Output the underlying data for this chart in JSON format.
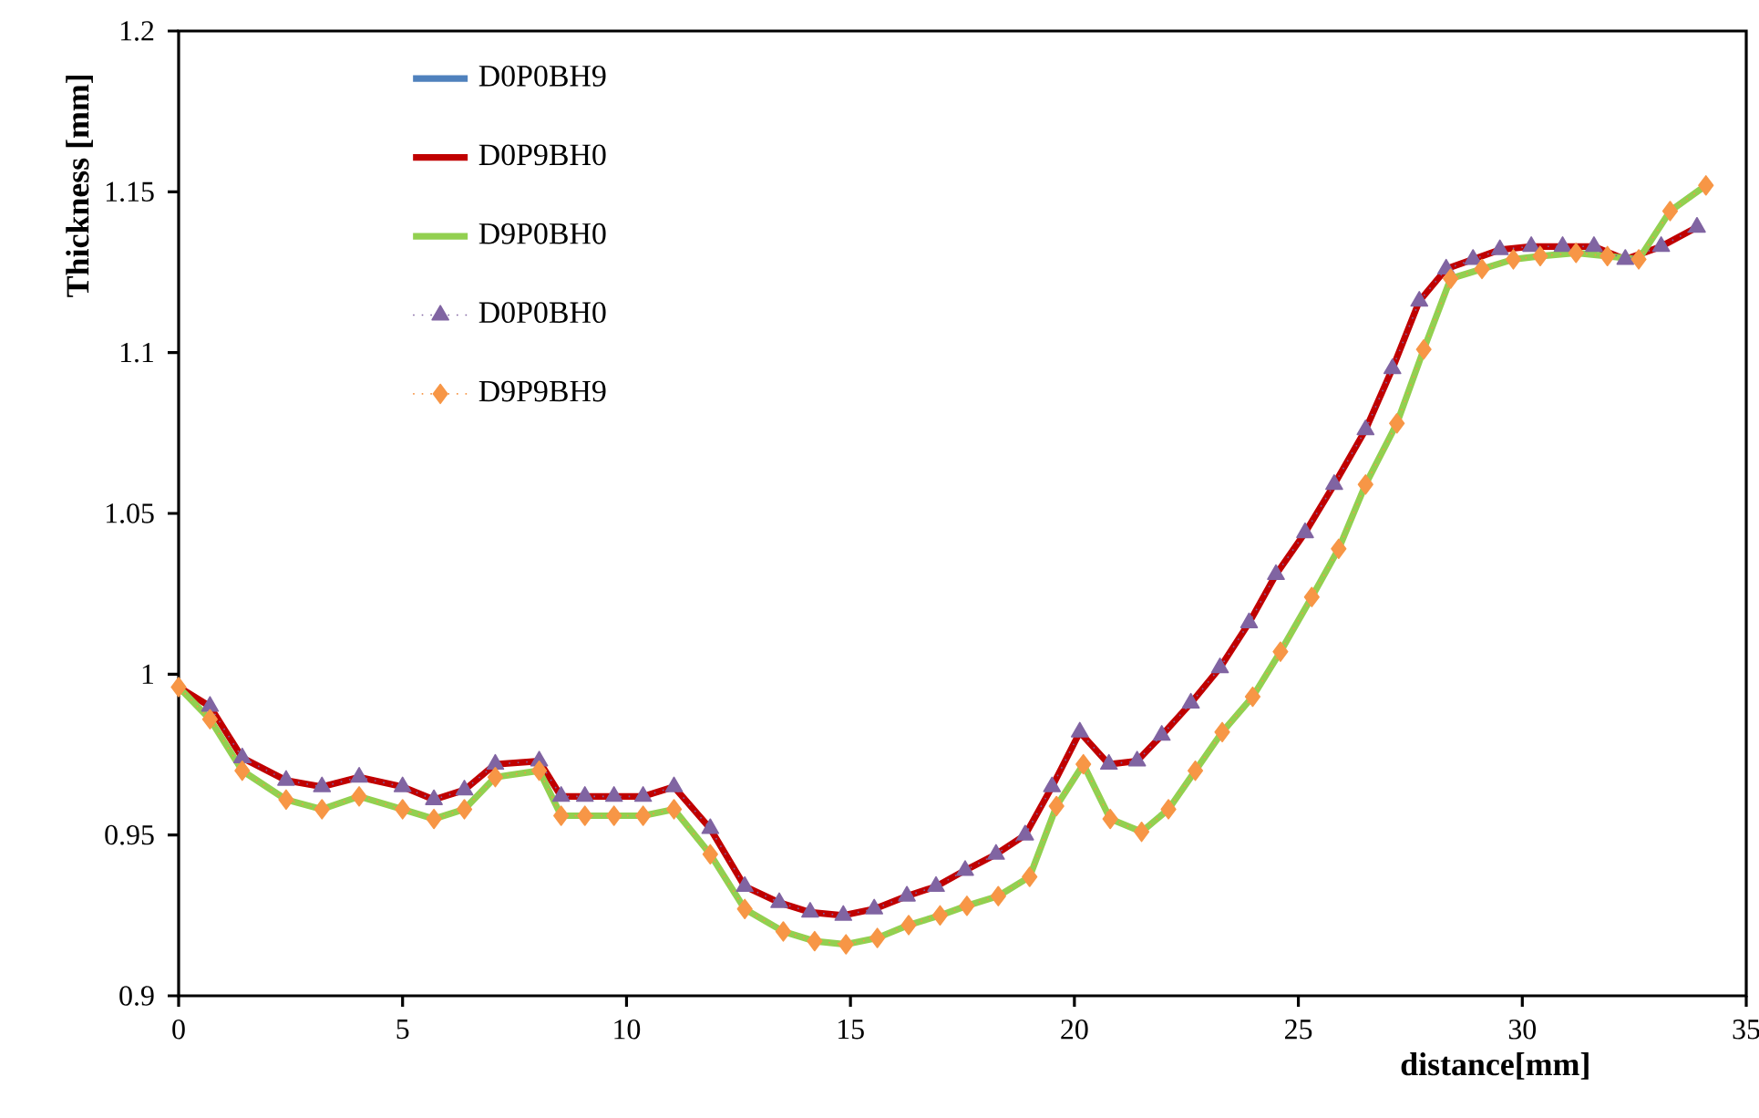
{
  "chart_data": {
    "type": "line",
    "xlabel": "distance[mm]",
    "ylabel": "Thickness [mm]",
    "xlim": [
      0,
      35
    ],
    "xticks": [
      0,
      5,
      10,
      15,
      20,
      25,
      30,
      35
    ],
    "ylim": [
      0.9,
      1.2
    ],
    "yticks": [
      0.9,
      0.95,
      1,
      1.05,
      1.1,
      1.15,
      1.2
    ],
    "grid": false,
    "legend": "top left",
    "x": [
      0,
      0.7,
      1.42,
      2.4,
      3.2,
      4.03,
      5.0,
      5.7,
      6.38,
      7.07,
      8.05,
      8.54,
      9.07,
      9.72,
      10.37,
      11.06,
      11.87,
      12.64,
      13.41,
      14.1,
      14.84,
      15.53,
      16.26,
      16.91,
      17.56,
      18.25,
      18.9,
      19.5,
      20.12,
      20.77,
      21.4,
      21.95,
      22.6,
      23.25,
      23.9,
      24.5,
      25.15,
      25.8,
      26.5,
      27.1,
      27.7,
      28.3,
      28.9,
      29.5,
      30.2,
      30.9,
      31.6,
      32.3,
      33.1,
      33.9
    ],
    "series": [
      {
        "name": "D0P0BH9",
        "color": "#4f81bd",
        "marker": "none",
        "line_style": "solid",
        "values": [
          null,
          null,
          null,
          null,
          null,
          null,
          null,
          null,
          null,
          null,
          null,
          null,
          null,
          null,
          null,
          null,
          null,
          null,
          null,
          null,
          null,
          null,
          null,
          null,
          null,
          null,
          null,
          null,
          null,
          null,
          null,
          null,
          null,
          null,
          null,
          null,
          null,
          null,
          null,
          null,
          null,
          null,
          null,
          null,
          null,
          null,
          null,
          null,
          null,
          null
        ]
      },
      {
        "name": "D0P9BH0",
        "color": "#c00000",
        "marker": "none",
        "line_style": "solid",
        "values": [
          0.996,
          0.99,
          0.974,
          0.967,
          0.965,
          0.968,
          0.965,
          0.961,
          0.964,
          0.972,
          0.973,
          0.962,
          0.962,
          0.962,
          0.962,
          0.965,
          0.952,
          0.934,
          0.929,
          0.926,
          0.925,
          0.927,
          0.931,
          0.934,
          0.939,
          0.944,
          0.95,
          0.965,
          0.982,
          0.972,
          0.973,
          0.981,
          0.991,
          1.002,
          1.016,
          1.031,
          1.044,
          1.059,
          1.076,
          1.095,
          1.116,
          1.126,
          1.129,
          1.132,
          1.133,
          1.133,
          1.133,
          1.129,
          1.133,
          1.139
        ]
      },
      {
        "name": "D9P0BH0",
        "color": "#92d050",
        "marker": "none",
        "line_style": "solid",
        "x": [
          0,
          0.7,
          1.42,
          2.4,
          3.2,
          4.03,
          5.0,
          5.7,
          6.38,
          7.07,
          8.05,
          8.54,
          9.07,
          9.72,
          10.37,
          11.06,
          11.87,
          12.64,
          13.5,
          14.2,
          14.9,
          15.6,
          16.3,
          17.0,
          17.6,
          18.3,
          19.0,
          19.6,
          20.2,
          20.8,
          21.5,
          22.1,
          22.7,
          23.3,
          23.98,
          24.6,
          25.3,
          25.9,
          26.5,
          27.2,
          27.8,
          28.4,
          29.1,
          29.8,
          30.4,
          31.2,
          31.9,
          32.6,
          33.3,
          34.1
        ],
        "values": [
          0.996,
          0.986,
          0.97,
          0.961,
          0.958,
          0.962,
          0.958,
          0.955,
          0.958,
          0.968,
          0.97,
          0.956,
          0.956,
          0.956,
          0.956,
          0.958,
          0.944,
          0.927,
          0.92,
          0.917,
          0.916,
          0.918,
          0.922,
          0.925,
          0.928,
          0.931,
          0.937,
          0.959,
          0.972,
          0.955,
          0.951,
          0.958,
          0.97,
          0.982,
          0.993,
          1.007,
          1.024,
          1.039,
          1.059,
          1.078,
          1.101,
          1.123,
          1.126,
          1.129,
          1.13,
          1.131,
          1.13,
          1.129,
          1.144,
          1.152
        ]
      },
      {
        "name": "D0P0BH0",
        "color": "#8064a2",
        "marker": "triangle",
        "line_style": "dotted",
        "values": [
          null,
          0.99,
          0.974,
          0.967,
          0.965,
          0.968,
          0.965,
          0.961,
          0.964,
          0.972,
          0.973,
          0.962,
          0.962,
          0.962,
          0.962,
          0.965,
          0.952,
          0.934,
          0.929,
          0.926,
          0.925,
          0.927,
          0.931,
          0.934,
          0.939,
          0.944,
          0.95,
          0.965,
          0.982,
          0.972,
          0.973,
          0.981,
          0.991,
          1.002,
          1.016,
          1.031,
          1.044,
          1.059,
          1.076,
          1.095,
          1.116,
          1.126,
          1.129,
          1.132,
          1.133,
          1.133,
          1.133,
          1.129,
          1.133,
          1.139
        ]
      },
      {
        "name": "D9P9BH9",
        "color": "#f79646",
        "marker": "diamond",
        "line_style": "dotted",
        "x": [
          0,
          0.7,
          1.42,
          2.4,
          3.2,
          4.03,
          5.0,
          5.7,
          6.38,
          7.07,
          8.05,
          8.54,
          9.07,
          9.72,
          10.37,
          11.06,
          11.87,
          12.64,
          13.5,
          14.2,
          14.9,
          15.6,
          16.3,
          17.0,
          17.6,
          18.3,
          19.0,
          19.6,
          20.2,
          20.8,
          21.5,
          22.1,
          22.7,
          23.3,
          23.98,
          24.6,
          25.3,
          25.9,
          26.5,
          27.2,
          27.8,
          28.4,
          29.1,
          29.8,
          30.4,
          31.2,
          31.9,
          32.6,
          33.3,
          34.1
        ],
        "values": [
          0.996,
          0.986,
          0.97,
          0.961,
          0.958,
          0.962,
          0.958,
          0.955,
          0.958,
          0.968,
          0.97,
          0.956,
          0.956,
          0.956,
          0.956,
          0.958,
          0.944,
          0.927,
          0.92,
          0.917,
          0.916,
          0.918,
          0.922,
          0.925,
          0.928,
          0.931,
          0.937,
          0.959,
          0.972,
          0.955,
          0.951,
          0.958,
          0.97,
          0.982,
          0.993,
          1.007,
          1.024,
          1.039,
          1.059,
          1.078,
          1.101,
          1.123,
          1.126,
          1.129,
          1.13,
          1.131,
          1.13,
          1.129,
          1.144,
          1.152
        ]
      }
    ]
  }
}
